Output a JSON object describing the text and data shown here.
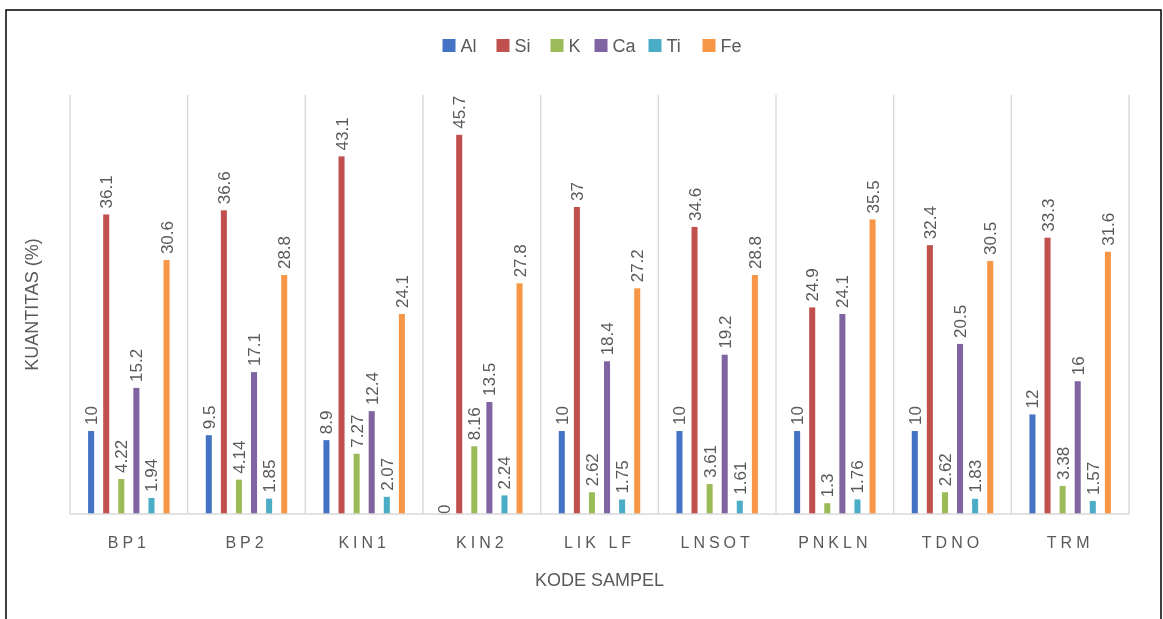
{
  "chart_data": {
    "type": "bar",
    "xlabel": "KODE SAMPEL",
    "ylabel": "KUANTITAS (%)",
    "categories": [
      "BP1",
      "BP2",
      "KIN1",
      "KIN2",
      "LIK LF",
      "LNSOT",
      "PNKLN",
      "TDNO",
      "TRM"
    ],
    "series": [
      {
        "name": "Al",
        "color": "#4472c4",
        "values": [
          10,
          9.5,
          8.9,
          0,
          10,
          10,
          10,
          10,
          12
        ]
      },
      {
        "name": "Si",
        "color": "#c0504d",
        "values": [
          36.1,
          36.6,
          43.1,
          45.7,
          37,
          34.6,
          24.9,
          32.4,
          33.3
        ]
      },
      {
        "name": "K",
        "color": "#9bbb59",
        "values": [
          4.22,
          4.14,
          7.27,
          8.16,
          2.62,
          3.61,
          1.3,
          2.62,
          3.38
        ]
      },
      {
        "name": "Ca",
        "color": "#8064a2",
        "values": [
          15.2,
          17.1,
          12.4,
          13.5,
          18.4,
          19.2,
          24.1,
          20.5,
          16
        ]
      },
      {
        "name": "Ti",
        "color": "#4bacc6",
        "values": [
          1.94,
          1.85,
          2.07,
          2.24,
          1.75,
          1.61,
          1.76,
          1.83,
          1.57
        ]
      },
      {
        "name": "Fe",
        "color": "#f79646",
        "values": [
          30.6,
          28.8,
          24.1,
          27.8,
          27.2,
          28.8,
          35.5,
          30.5,
          31.6
        ]
      }
    ],
    "data_labels": true,
    "legend": "top",
    "grid": "x"
  }
}
